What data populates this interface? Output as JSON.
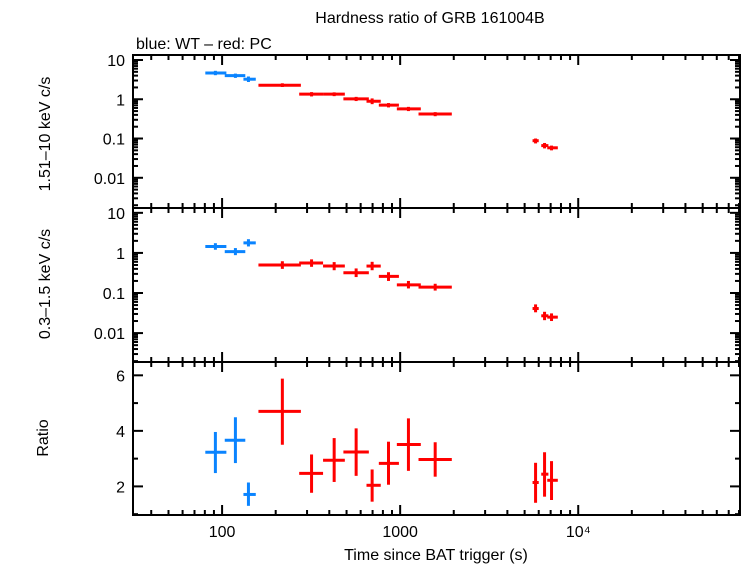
{
  "chart_data": {
    "type": "scatter",
    "title": "Hardness ratio of GRB 161004B",
    "subtitle": "blue: WT – red: PC",
    "xlabel": "Time since BAT trigger (s)",
    "xscale": "log",
    "xlim": [
      31.6,
      81000
    ],
    "xticks": [
      {
        "v": 100,
        "label": "100"
      },
      {
        "v": 1000,
        "label": "1000"
      },
      {
        "v": 10000,
        "label": "10⁴"
      }
    ],
    "colors": {
      "WT": "#0a84ff",
      "PC": "#ff0000"
    },
    "point_format": [
      "x",
      "x_lo",
      "x_hi",
      "y",
      "y_lo",
      "y_hi"
    ],
    "panels": [
      {
        "ylabel": "1.51–10 keV c/s",
        "yscale": "log",
        "ylim": [
          0.0017,
          13.4
        ],
        "yticks": [
          {
            "v": 10,
            "label": "10"
          },
          {
            "v": 1,
            "label": "1"
          },
          {
            "v": 0.1,
            "label": "0.1"
          },
          {
            "v": 0.01,
            "label": "0.01"
          }
        ],
        "series": [
          {
            "name": "WT",
            "points": [
              [
                91.7,
                80.5,
                105.7,
                4.68,
                4.1,
                5.3
              ],
              [
                118.8,
                103.5,
                135,
                4.0,
                3.5,
                4.5
              ],
              [
                140.6,
                131.8,
                154.6,
                3.24,
                2.75,
                3.8
              ]
            ]
          },
          {
            "name": "PC",
            "points": [
              [
                218,
                160,
                277,
                2.28,
                2.05,
                2.55
              ],
              [
                318,
                271,
                369,
                1.35,
                1.18,
                1.52
              ],
              [
                426,
                369,
                489,
                1.35,
                1.2,
                1.5
              ],
              [
                566,
                480,
                667,
                1.02,
                0.9,
                1.15
              ],
              [
                696,
                647,
                778,
                0.89,
                0.75,
                1.05
              ],
              [
                860,
                759,
                984,
                0.71,
                0.62,
                0.8
              ],
              [
                1113,
                958,
                1306,
                0.57,
                0.5,
                0.64
              ],
              [
                1573,
                1268,
                1950,
                0.42,
                0.37,
                0.47
              ],
              [
                5760,
                5540,
                6000,
                0.088,
                0.075,
                0.1
              ],
              [
                6470,
                6200,
                6800,
                0.066,
                0.056,
                0.077
              ],
              [
                7080,
                6700,
                7680,
                0.058,
                0.05,
                0.066
              ]
            ]
          }
        ]
      },
      {
        "ylabel": "0.3–1.5 keV c/s",
        "yscale": "log",
        "ylim": [
          0.0019,
          13.2
        ],
        "yticks": [
          {
            "v": 10,
            "label": "10"
          },
          {
            "v": 1,
            "label": "1"
          },
          {
            "v": 0.1,
            "label": "0.1"
          },
          {
            "v": 0.01,
            "label": "0.01"
          }
        ],
        "series": [
          {
            "name": "WT",
            "points": [
              [
                91.7,
                80.5,
                105.7,
                1.45,
                1.2,
                1.75
              ],
              [
                118.8,
                103.5,
                135,
                1.08,
                0.88,
                1.32
              ],
              [
                140.6,
                131.8,
                154.6,
                1.78,
                1.45,
                2.2
              ]
            ]
          },
          {
            "name": "PC",
            "points": [
              [
                218,
                160,
                277,
                0.5,
                0.4,
                0.62
              ],
              [
                318,
                271,
                369,
                0.56,
                0.45,
                0.69
              ],
              [
                426,
                369,
                489,
                0.47,
                0.37,
                0.59
              ],
              [
                566,
                480,
                667,
                0.32,
                0.25,
                0.41
              ],
              [
                696,
                647,
                778,
                0.47,
                0.37,
                0.6
              ],
              [
                860,
                759,
                984,
                0.26,
                0.2,
                0.33
              ],
              [
                1113,
                958,
                1306,
                0.16,
                0.13,
                0.2
              ],
              [
                1573,
                1268,
                1950,
                0.14,
                0.115,
                0.17
              ],
              [
                5760,
                5540,
                6000,
                0.041,
                0.033,
                0.052
              ],
              [
                6470,
                6200,
                6800,
                0.027,
                0.021,
                0.034
              ],
              [
                7080,
                6700,
                7680,
                0.025,
                0.02,
                0.031
              ]
            ]
          }
        ]
      },
      {
        "ylabel": "Ratio",
        "yscale": "linear",
        "ylim": [
          0.97,
          6.48
        ],
        "yticks": [
          {
            "v": 2,
            "label": "2"
          },
          {
            "v": 4,
            "label": "4"
          },
          {
            "v": 6,
            "label": "6"
          }
        ],
        "series": [
          {
            "name": "WT",
            "points": [
              [
                91.7,
                80.5,
                105.7,
                3.23,
                2.48,
                3.96
              ],
              [
                118.8,
                103.5,
                135,
                3.66,
                2.84,
                4.49
              ],
              [
                140.6,
                131.8,
                154.6,
                1.71,
                1.3,
                2.14
              ]
            ]
          },
          {
            "name": "PC",
            "points": [
              [
                218,
                160,
                277,
                4.7,
                3.5,
                5.88
              ],
              [
                318,
                271,
                369,
                2.47,
                1.77,
                3.15
              ],
              [
                426,
                369,
                489,
                2.94,
                2.16,
                3.74
              ],
              [
                566,
                480,
                667,
                3.24,
                2.38,
                4.09
              ],
              [
                696,
                647,
                778,
                2.04,
                1.45,
                2.61
              ],
              [
                860,
                759,
                984,
                2.83,
                2.06,
                3.61
              ],
              [
                1113,
                958,
                1306,
                3.51,
                2.56,
                4.45
              ],
              [
                1573,
                1268,
                1950,
                2.97,
                2.35,
                3.59
              ],
              [
                5760,
                5540,
                6000,
                2.14,
                1.41,
                2.85
              ],
              [
                6470,
                6200,
                6800,
                2.44,
                1.63,
                3.23
              ],
              [
                7080,
                6700,
                7680,
                2.22,
                1.51,
                2.91
              ]
            ]
          }
        ]
      }
    ]
  }
}
